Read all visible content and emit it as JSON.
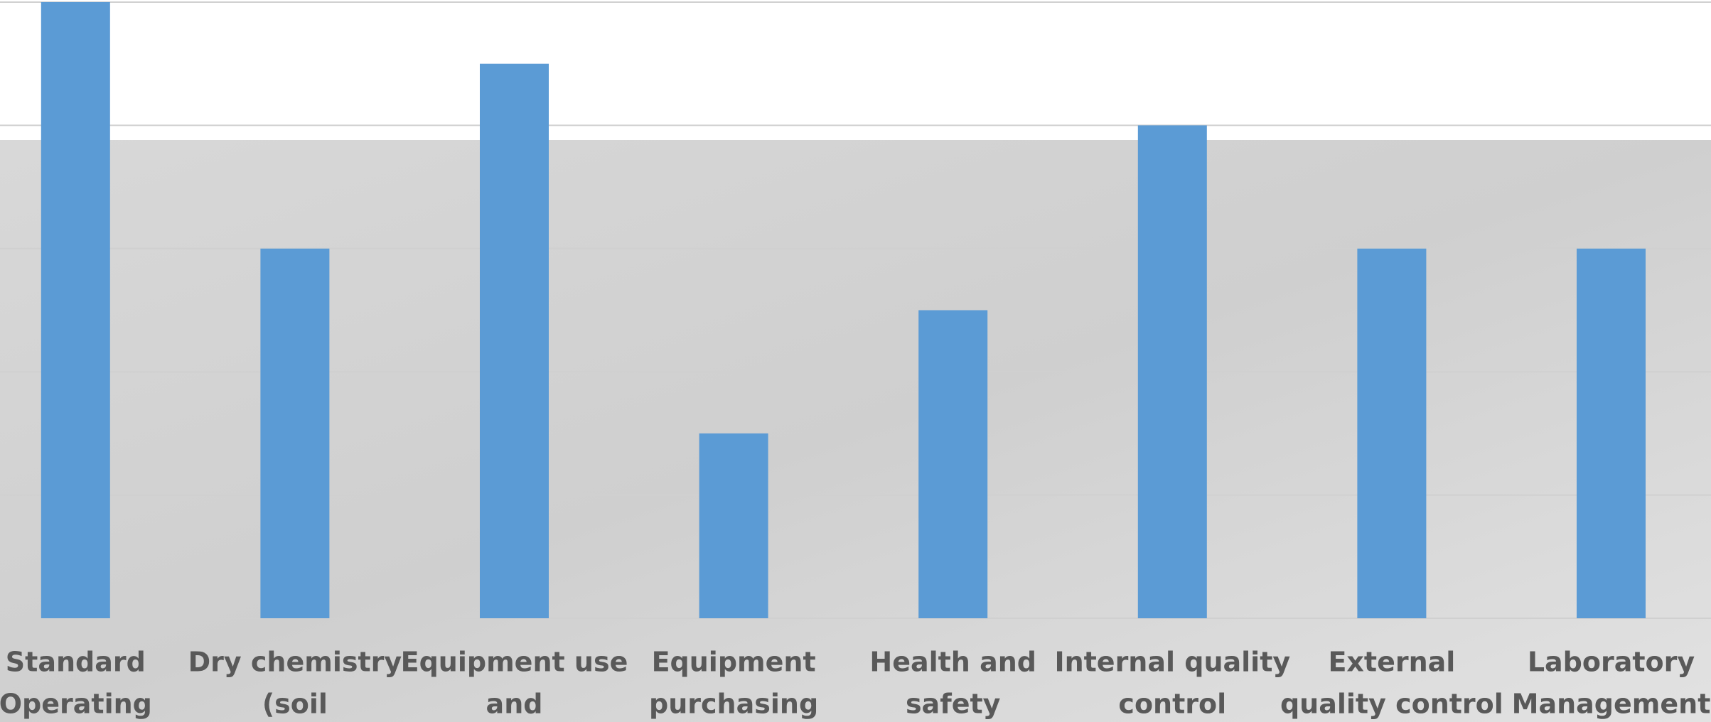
{
  "chart_data": {
    "type": "bar",
    "categories": [
      [
        "Standard",
        "Operating"
      ],
      [
        "Dry chemistry",
        "(soil"
      ],
      [
        "Equipment use",
        "and"
      ],
      [
        "Equipment",
        "purchasing"
      ],
      [
        "Health and",
        "safety"
      ],
      [
        "Internal quality",
        "control"
      ],
      [
        "External",
        "quality control"
      ],
      [
        "Laboratory",
        "Management"
      ]
    ],
    "values": [
      5,
      3,
      4.5,
      1.5,
      2.5,
      4,
      3,
      3
    ],
    "color": "#5b9bd5",
    "ylim": [
      0,
      5
    ],
    "yticks": [
      0,
      1,
      2,
      3,
      4,
      5
    ],
    "grid": true
  }
}
